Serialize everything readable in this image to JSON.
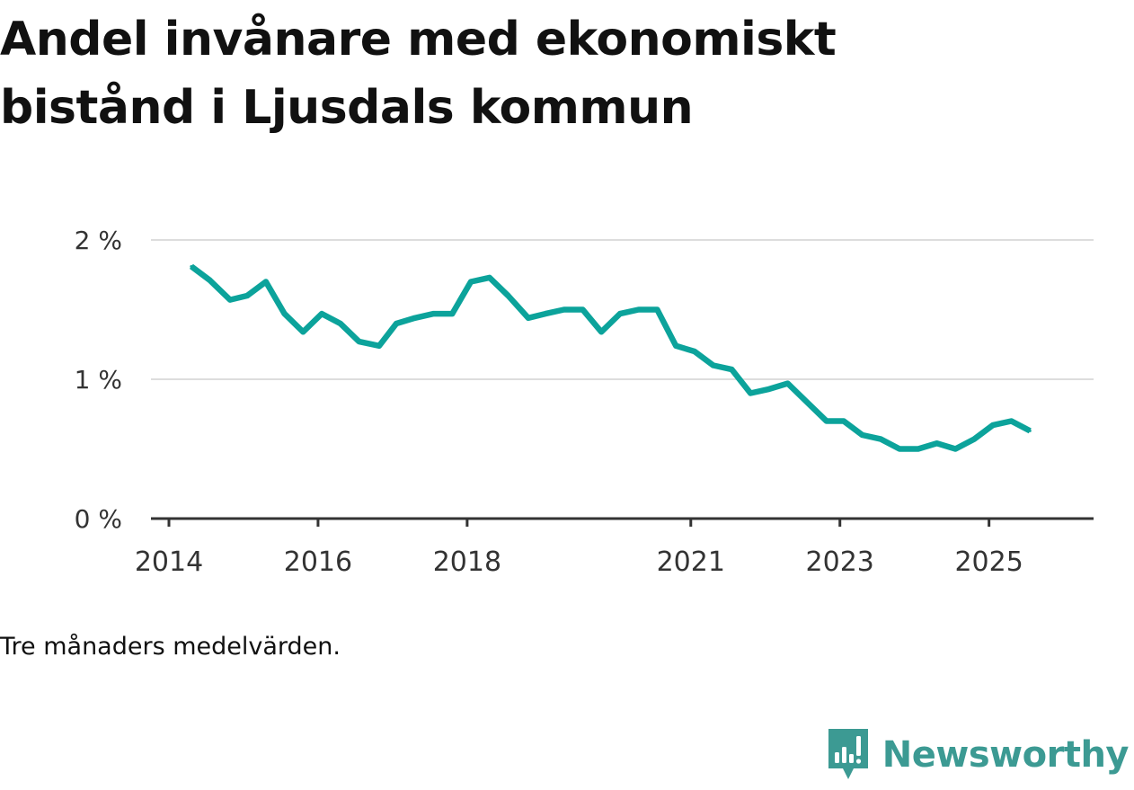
{
  "title": {
    "line1": "Andel invånare med ekonomiskt",
    "line2": "bistånd i Ljusdals kommun"
  },
  "note": "Tre månaders medelvärden.",
  "brand": {
    "name": "Newsworthy",
    "icon": "newsworthy-logo-icon"
  },
  "colors": {
    "line": "#0ca39b",
    "grid": "#dddddd",
    "axis": "#333333",
    "text": "#333333",
    "brand": "#3c9a93"
  },
  "chart_data": {
    "type": "line",
    "title": "Andel invånare med ekonomiskt bistånd i Ljusdals kommun",
    "xlabel": "",
    "ylabel": "",
    "ylim": [
      0,
      2
    ],
    "xlim": [
      2014,
      2025.86
    ],
    "grid": true,
    "y_ticks": [
      {
        "value": 0,
        "label": "0 %"
      },
      {
        "value": 1,
        "label": "1 %"
      },
      {
        "value": 2,
        "label": "2 %"
      }
    ],
    "x_ticks": [
      {
        "value": 2014,
        "label": "2014"
      },
      {
        "value": 2016,
        "label": "2016"
      },
      {
        "value": 2018,
        "label": "2018"
      },
      {
        "value": 2021,
        "label": "2021"
      },
      {
        "value": 2023,
        "label": "2023"
      },
      {
        "value": 2025,
        "label": "2025"
      }
    ],
    "series": [
      {
        "name": "Andel invånare med ekonomiskt bistånd",
        "x": [
          2014.3,
          2014.55,
          2014.82,
          2015.05,
          2015.3,
          2015.55,
          2015.8,
          2016.05,
          2016.3,
          2016.55,
          2016.82,
          2017.05,
          2017.3,
          2017.55,
          2017.8,
          2018.05,
          2018.3,
          2018.55,
          2018.82,
          2019.05,
          2019.3,
          2019.55,
          2019.8,
          2020.05,
          2020.3,
          2020.55,
          2020.8,
          2021.05,
          2021.3,
          2021.55,
          2021.8,
          2022.05,
          2022.3,
          2022.55,
          2022.82,
          2023.05,
          2023.3,
          2023.55,
          2023.8,
          2024.05,
          2024.3,
          2024.55,
          2024.8,
          2025.05,
          2025.3,
          2025.55
        ],
        "values": [
          1.81,
          1.71,
          1.57,
          1.6,
          1.7,
          1.47,
          1.34,
          1.47,
          1.4,
          1.27,
          1.24,
          1.4,
          1.44,
          1.47,
          1.47,
          1.7,
          1.73,
          1.6,
          1.44,
          1.47,
          1.5,
          1.5,
          1.34,
          1.47,
          1.5,
          1.5,
          1.24,
          1.2,
          1.1,
          1.07,
          0.9,
          0.93,
          0.97,
          0.84,
          0.7,
          0.7,
          0.6,
          0.57,
          0.5,
          0.5,
          0.54,
          0.5,
          0.57,
          0.67,
          0.7,
          0.63
        ]
      }
    ]
  }
}
